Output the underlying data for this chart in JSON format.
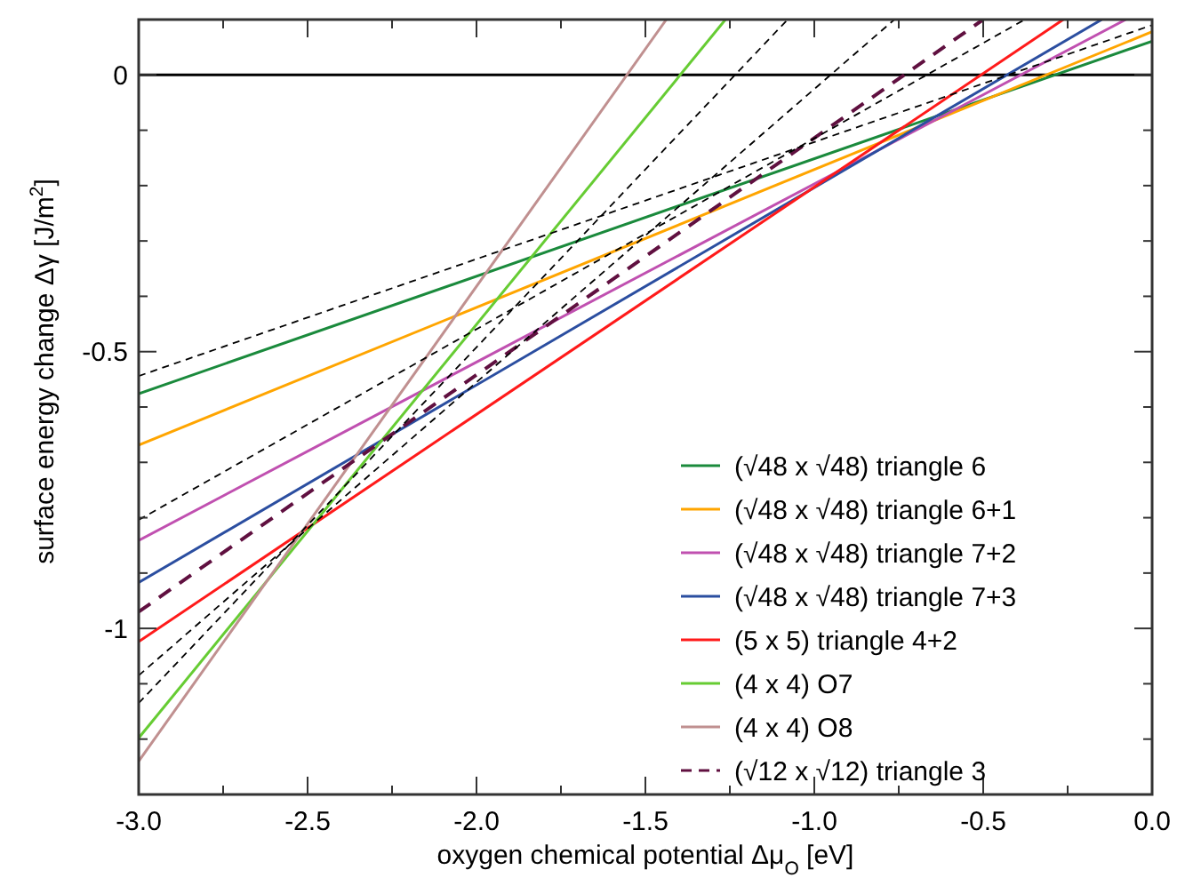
{
  "chart_data": {
    "type": "line",
    "xlabel": "oxygen chemical potential Δμ$_{O}$ [eV]",
    "ylabel": "surface energy change Δγ [J/m$^{2}$]",
    "xlim": [
      -3,
      0
    ],
    "ylim": [
      -1.3,
      0.1
    ],
    "xticks": [
      {
        "value": -3,
        "label": "-3.0"
      },
      {
        "value": -2.75,
        "label": null
      },
      {
        "value": -2.5,
        "label": "-2.5"
      },
      {
        "value": -2.25,
        "label": null
      },
      {
        "value": -2,
        "label": "-2.0"
      },
      {
        "value": -1.75,
        "label": null
      },
      {
        "value": -1.5,
        "label": "-1.5"
      },
      {
        "value": -1.25,
        "label": null
      },
      {
        "value": -1,
        "label": "-1.0"
      },
      {
        "value": -0.75,
        "label": null
      },
      {
        "value": -0.5,
        "label": "-0.5"
      },
      {
        "value": -0.25,
        "label": null
      },
      {
        "value": 0,
        "label": "0.0"
      }
    ],
    "yticks": [
      {
        "value": -1.3,
        "label": null
      },
      {
        "value": -1.2,
        "label": null
      },
      {
        "value": -1.1,
        "label": null
      },
      -1,
      {
        "value": -0.9,
        "label": null
      },
      {
        "value": -0.8,
        "label": null
      },
      {
        "value": -0.7,
        "label": null
      },
      {
        "value": -0.6,
        "label": null
      },
      -0.5,
      {
        "value": -0.4,
        "label": null
      },
      {
        "value": -0.3,
        "label": null
      },
      {
        "value": -0.2,
        "label": null
      },
      {
        "value": -0.1,
        "label": null
      },
      0,
      {
        "value": 0.1,
        "label": null
      }
    ],
    "grid": false,
    "legend": "bottom right",
    "ref_lines": [
      {
        "axis": "y",
        "value": 0,
        "color": "#000000"
      }
    ],
    "series": [
      {
        "name": "(√48 x √48) triangle 6",
        "color": "#1a8a3c",
        "x": [
          -3,
          0
        ],
        "values": [
          -0.576,
          0.061
        ]
      },
      {
        "name": "(√48 x √48) triangle 6+1",
        "color": "#ffa500",
        "x": [
          -3,
          0
        ],
        "values": [
          -0.669,
          0.078
        ]
      },
      {
        "name": "(√48 x √48) triangle 7+2",
        "color": "#c050b0",
        "x": [
          -3,
          -0.078
        ],
        "values": [
          -0.841,
          0.1
        ]
      },
      {
        "name": "(√48 x √48) triangle 7+3",
        "color": "#2b4ea0",
        "x": [
          -3,
          -0.149
        ],
        "values": [
          -0.917,
          0.1
        ]
      },
      {
        "name": "(5 x 5) triangle 4+2",
        "color": "#ff1a1a",
        "x": [
          -3,
          -0.263
        ],
        "values": [
          -1.024,
          0.1
        ]
      },
      {
        "name": "(4 x 4) O7",
        "color": "#66cc33",
        "x": [
          -3,
          -1.263
        ],
        "values": [
          -1.198,
          0.1
        ]
      },
      {
        "name": "(4 x 4) O8",
        "color": "#c09090",
        "x": [
          -3,
          -1.438
        ],
        "values": [
          -1.24,
          0.1
        ]
      },
      {
        "name": "(√12 x √12) triangle 3",
        "color": "#601040",
        "line_style": "dashed",
        "x": [
          -3,
          -0.5
        ],
        "values": [
          -0.97,
          0.1
        ]
      },
      {
        "color": "#000000",
        "line_style": "dashed",
        "x": [
          -3,
          0
        ],
        "values": [
          -0.544,
          0.09
        ]
      },
      {
        "color": "#000000",
        "line_style": "dashed",
        "x": [
          -3,
          -0.377
        ],
        "values": [
          -0.804,
          0.1
        ]
      },
      {
        "color": "#000000",
        "line_style": "dashed",
        "x": [
          -3,
          -0.763
        ],
        "values": [
          -1.085,
          0.1
        ]
      },
      {
        "color": "#000000",
        "line_style": "dashed",
        "x": [
          -3,
          -1.079
        ],
        "values": [
          -1.135,
          0.1
        ]
      }
    ]
  }
}
